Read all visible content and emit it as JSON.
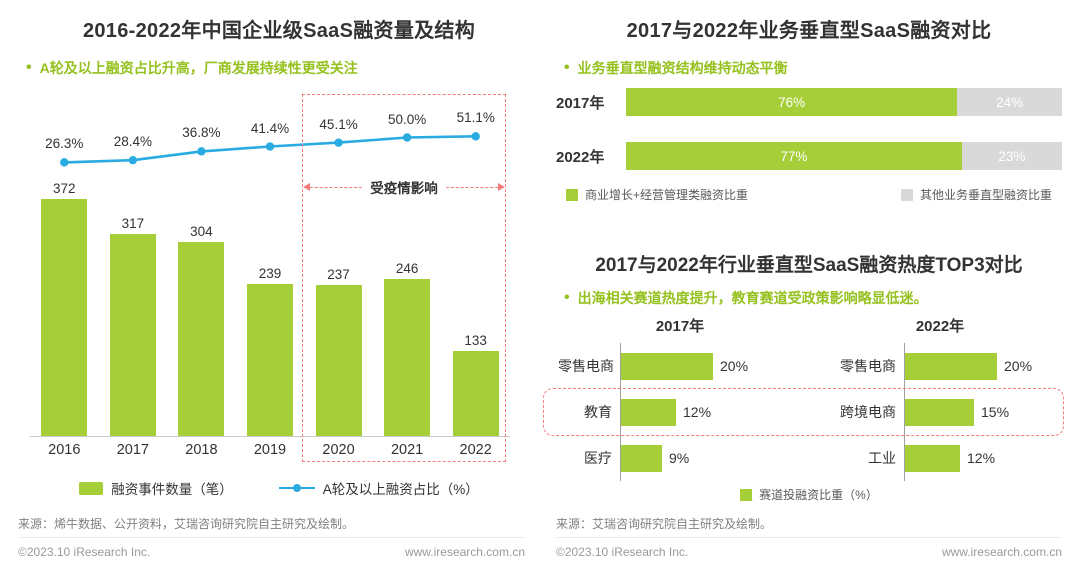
{
  "misc": {
    "bullet": "•"
  },
  "colors": {
    "green": "#A5CE39",
    "green_text": "#95C11F",
    "blue": "#29ABE2",
    "gray_bar": "#D9D9D9",
    "red": "#F47C7C"
  },
  "left_panel": {
    "title": "2016-2022年中国企业级SaaS融资量及结构",
    "subtitle": "A轮及以上融资占比升高，厂商发展持续性更受关注",
    "covid_annotation": "受疫情影响",
    "source": "来源：烯牛数据、公开资料，艾瑞咨询研究院自主研究及绘制。",
    "footer_copyright": "©2023.10 iResearch Inc.",
    "footer_url": "www.iresearch.com.cn"
  },
  "right_top_panel": {
    "title": "2017与2022年业务垂直型SaaS融资对比",
    "subtitle": "业务垂直型融资结构维持动态平衡"
  },
  "right_bottom_panel": {
    "title": "2017与2022年行业垂直型SaaS融资热度TOP3对比",
    "subtitle": "出海相关赛道热度提升，教育赛道受政策影响略显低迷。",
    "source": "来源：艾瑞咨询研究院自主研究及绘制。",
    "footer_copyright": "©2023.10 iResearch Inc.",
    "footer_url": "www.iresearch.com.cn"
  },
  "chart_data": [
    {
      "id": "saas-funding-volume-structure",
      "type": "bar",
      "subtype": "bar+line-combo",
      "title": "2016-2022年中国企业级SaaS融资量及结构",
      "categories": [
        "2016",
        "2017",
        "2018",
        "2019",
        "2020",
        "2021",
        "2022"
      ],
      "series": [
        {
          "name": "融资事件数量（笔）",
          "type": "bar",
          "values": [
            372,
            317,
            304,
            239,
            237,
            246,
            133
          ]
        },
        {
          "name": "A轮及以上融资占比（%）",
          "type": "line",
          "unit": "%",
          "values": [
            26.3,
            28.4,
            36.8,
            41.4,
            45.1,
            50.0,
            51.1
          ]
        }
      ],
      "annotation": {
        "text": "受疫情影响",
        "categories": [
          "2020",
          "2021",
          "2022"
        ]
      },
      "ylim": [
        0,
        400
      ],
      "grid": false,
      "legend_position": "bottom"
    },
    {
      "id": "business-vertical-saas-comparison",
      "type": "bar",
      "subtype": "horizontal-stacked",
      "title": "2017与2022年业务垂直型SaaS融资对比",
      "categories": [
        "2017年",
        "2022年"
      ],
      "series": [
        {
          "name": "商业增长+经营管理类融资比重",
          "unit": "%",
          "values": [
            76,
            77
          ]
        },
        {
          "name": "其他业务垂直型融资比重",
          "unit": "%",
          "values": [
            24,
            23
          ]
        }
      ],
      "legend_position": "bottom"
    },
    {
      "id": "industry-vertical-saas-top3",
      "type": "bar",
      "subtype": "horizontal-grouped",
      "title": "2017与2022年行业垂直型SaaS融资热度TOP3对比",
      "groups": [
        {
          "name": "2017年",
          "categories": [
            "零售电商",
            "教育",
            "医疗"
          ],
          "unit": "%",
          "values": [
            20,
            12,
            9
          ]
        },
        {
          "name": "2022年",
          "categories": [
            "零售电商",
            "跨境电商",
            "工业"
          ],
          "unit": "%",
          "values": [
            20,
            15,
            12
          ]
        }
      ],
      "legend": "赛道投融资比重（%）",
      "highlighted_row_index": 1
    }
  ]
}
